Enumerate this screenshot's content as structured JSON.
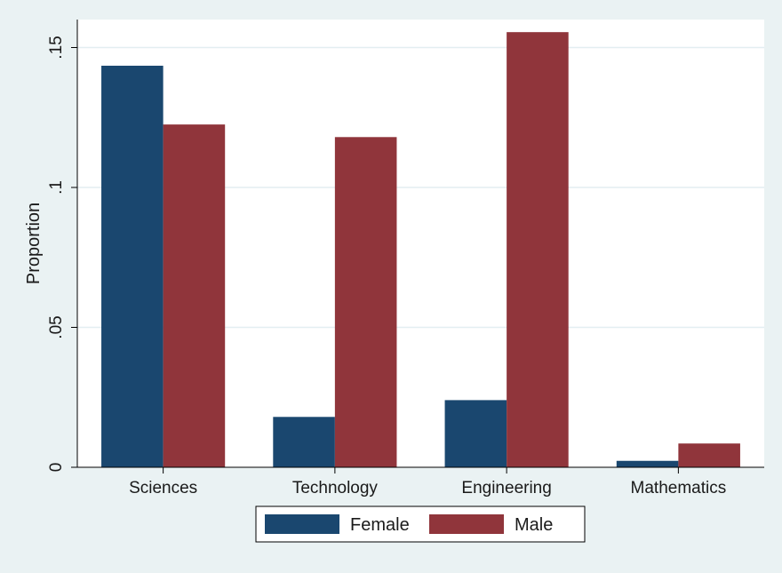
{
  "chart_data": {
    "type": "bar",
    "title": "",
    "xlabel": "",
    "ylabel": "Proportion",
    "ylim": [
      0,
      0.16
    ],
    "yticks": [
      {
        "value": 0,
        "label": "0"
      },
      {
        "value": 0.05,
        "label": ".05"
      },
      {
        "value": 0.1,
        "label": ".1"
      },
      {
        "value": 0.15,
        "label": ".15"
      }
    ],
    "categories": [
      "Sciences",
      "Technology",
      "Engineering",
      "Mathematics"
    ],
    "series": [
      {
        "name": "Female",
        "color": "#1a476f",
        "values": [
          0.1435,
          0.018,
          0.024,
          0.0023
        ]
      },
      {
        "name": "Male",
        "color": "#90353b",
        "values": [
          0.1225,
          0.118,
          0.1555,
          0.0085
        ]
      }
    ],
    "grid": true,
    "legend_position": "bottom"
  }
}
